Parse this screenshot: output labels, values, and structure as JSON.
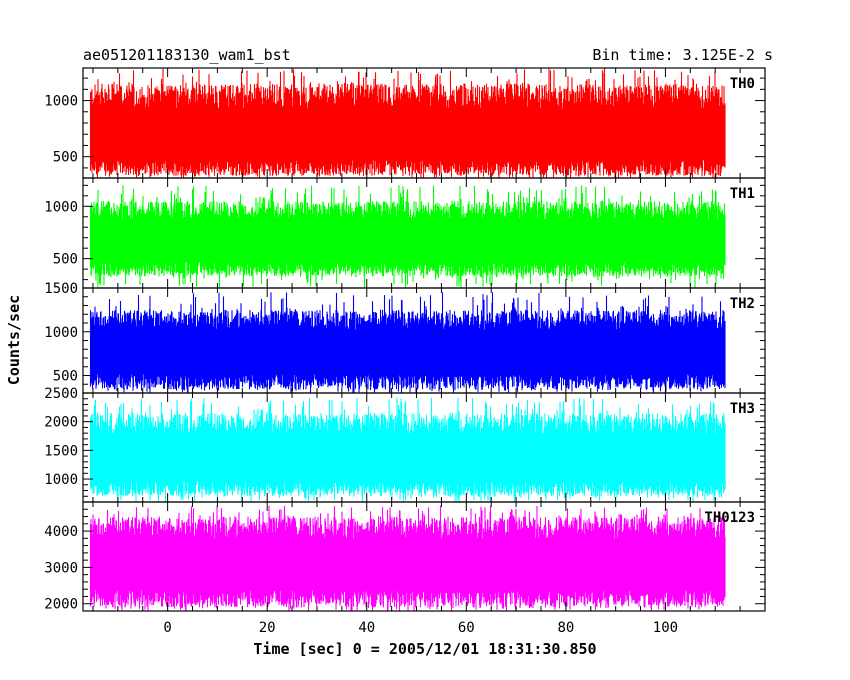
{
  "chart_data": {
    "type": "line",
    "title_left": "ae051201183130_wam1_bst",
    "title_right": "Bin time: 3.125E-2 s",
    "xlabel": "Time [sec] 0 = 2005/12/01 18:31:30.850",
    "ylabel": "Counts/sec",
    "xlim": [
      -17,
      120
    ],
    "data_xrange": [
      -15.5,
      112
    ],
    "xticks": [
      0,
      20,
      40,
      60,
      80,
      100
    ],
    "grid": false,
    "legend": "none",
    "panels": [
      {
        "name": "TH0",
        "color": "#ff0000",
        "ylim": [
          310,
          1290
        ],
        "yticks": [
          500,
          1000
        ],
        "mean": 650,
        "low": 330,
        "high": 1150,
        "spike_max": 1290
      },
      {
        "name": "TH1",
        "color": "#00ff00",
        "ylim": [
          220,
          1270
        ],
        "yticks": [
          500,
          1000
        ],
        "mean": 640,
        "low": 330,
        "high": 1050,
        "spike_max": 1200
      },
      {
        "name": "TH2",
        "color": "#0000ff",
        "ylim": [
          300,
          1500
        ],
        "yticks": [
          500,
          1000,
          1500
        ],
        "mean": 740,
        "low": 340,
        "high": 1250,
        "spike_max": 1450
      },
      {
        "name": "TH3",
        "color": "#00ffff",
        "ylim": [
          600,
          2500
        ],
        "yticks": [
          1000,
          1500,
          2000,
          2500
        ],
        "mean": 1300,
        "low": 700,
        "high": 2150,
        "spike_max": 2420
      },
      {
        "name": "TH0123",
        "color": "#ff00ff",
        "ylim": [
          1800,
          4800
        ],
        "yticks": [
          2000,
          3000,
          4000
        ],
        "mean": 3000,
        "low": 1900,
        "high": 4400,
        "spike_max": 4700
      }
    ]
  }
}
